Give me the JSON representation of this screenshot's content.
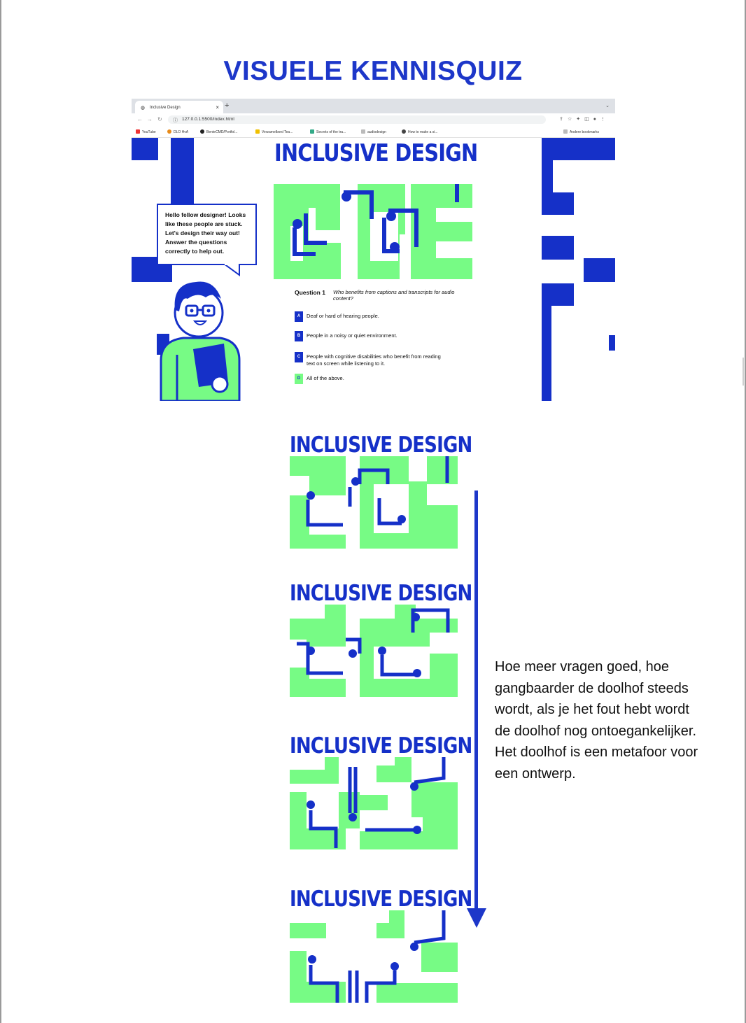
{
  "page": {
    "title": "VISUELE KENNISQUIZ",
    "explanation": "Hoe meer vragen goed, hoe gangbaarder de doolhof steeds wordt, als je het fout hebt wordt de doolhof nog ontoegankelijker. Het doolhof is een metafoor voor een ontwerp."
  },
  "browser": {
    "tab_title": "Inclusive Design",
    "url": "127.0.0.1:5500/index.html",
    "bookmarks": [
      "YouTube",
      "DLO HvA",
      "BenteCMD/Portfol...",
      "Verzamelbord Tea...",
      "Secrets of the tra...",
      "audiodesign",
      "How to make a si..."
    ],
    "other_bookmarks": "Andere bookmarks"
  },
  "app": {
    "logo": "INCLUSIVE DESIGN",
    "speech": "Hello fellow designer! Looks like these people are stuck. Let's design their way out! Answer the questions correctly to help out.",
    "question_label": "Question 1",
    "question_text": "Who benefits from captions and transcripts for audio content?",
    "answers": [
      {
        "letter": "A",
        "text": "Deaf or hard of hearing people."
      },
      {
        "letter": "B",
        "text": "People in a noisy or quiet environment."
      },
      {
        "letter": "C",
        "text": "People with cognitive disabilities who benefit from reading text on screen while listening to it."
      },
      {
        "letter": "D",
        "text": "All of the above."
      }
    ]
  },
  "mazes": [
    "INCLUSIVE DESIGN",
    "INCLUSIVE DESIGN",
    "INCLUSIVE DESIGN",
    "INCLUSIVE DESIGN"
  ],
  "colors": {
    "blue": "#1530c8",
    "green": "#77fb85",
    "title_blue": "#1d37c9"
  }
}
